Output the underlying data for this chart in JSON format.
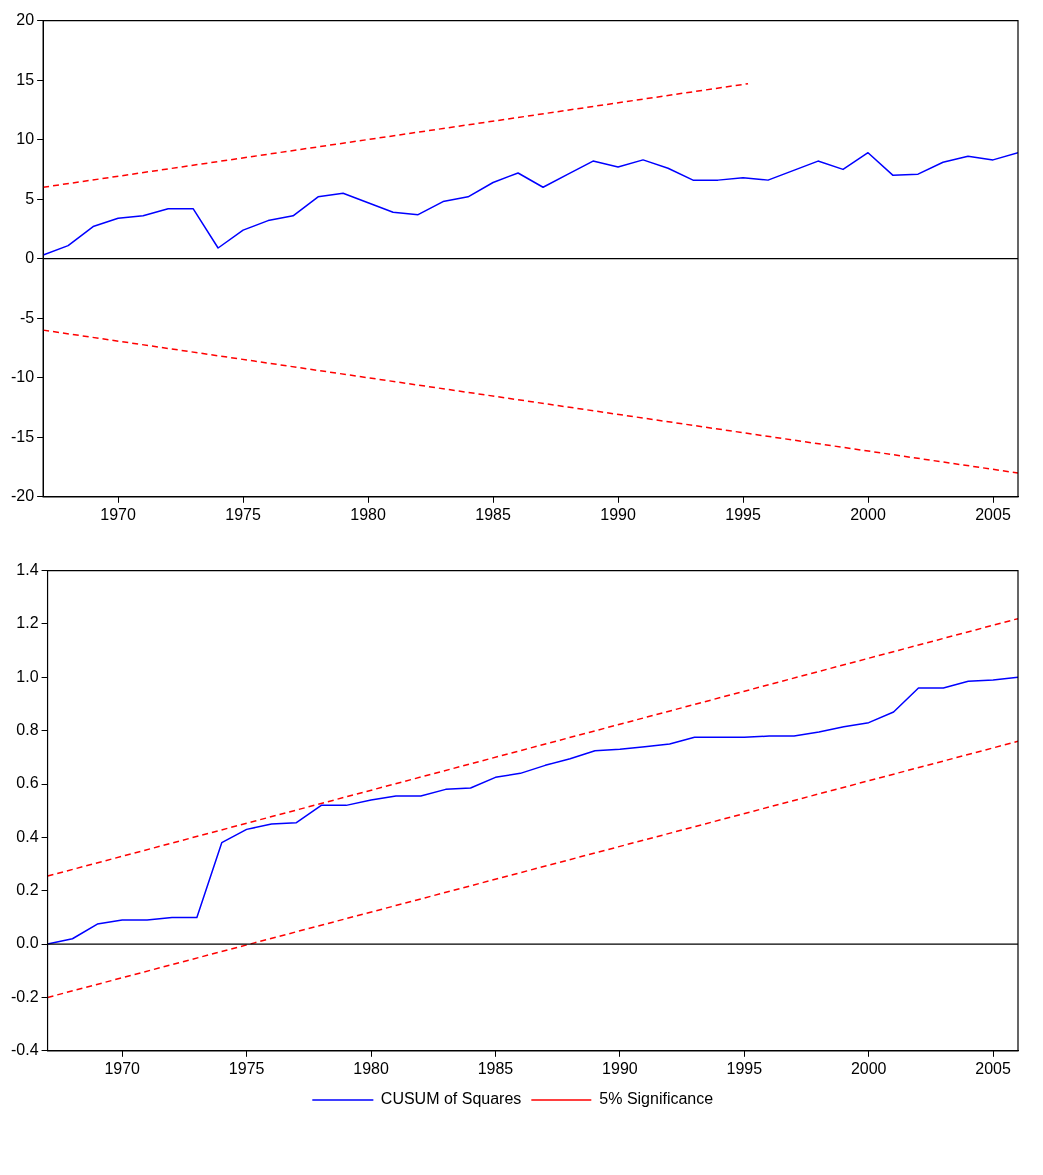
{
  "chart_data": [
    {
      "type": "line",
      "x": [
        1967,
        1968,
        1969,
        1970,
        1971,
        1972,
        1973,
        1974,
        1975,
        1976,
        1977,
        1978,
        1979,
        1980,
        1981,
        1982,
        1983,
        1984,
        1985,
        1986,
        1987,
        1988,
        1989,
        1990,
        1991,
        1992,
        1993,
        1994,
        1995,
        1996,
        1997,
        1998,
        1999,
        2000,
        2001,
        2002,
        2003,
        2004,
        2005,
        2006
      ],
      "series": [
        {
          "color": "#0000ff",
          "line_style": "solid",
          "values": [
            0.3,
            1.1,
            2.7,
            3.4,
            3.6,
            4.2,
            4.2,
            0.9,
            2.4,
            3.2,
            3.6,
            5.2,
            5.5,
            4.7,
            3.9,
            3.7,
            4.8,
            5.2,
            6.4,
            7.2,
            6.0,
            7.1,
            8.2,
            7.7,
            8.3,
            7.6,
            6.6,
            6.6,
            6.8,
            6.6,
            7.4,
            8.2,
            7.5,
            8.9,
            7.0,
            7.1,
            8.1,
            8.6,
            8.3,
            8.9
          ]
        },
        {
          "color": "#ff0000",
          "line_style": "dashed",
          "x": [
            1967,
            1995.2
          ],
          "values": [
            6.0,
            14.7
          ]
        },
        {
          "color": "#ff0000",
          "line_style": "dashed",
          "x": [
            1967,
            2006
          ],
          "values": [
            -6.0,
            -18.0
          ]
        }
      ],
      "xlim": [
        1967,
        2006
      ],
      "xticks": [
        1970,
        1975,
        1980,
        1985,
        1990,
        1995,
        2000,
        2005
      ],
      "ylim": [
        -20,
        20
      ],
      "yticks": [
        -20,
        -15,
        -10,
        -5,
        0,
        5,
        10,
        15,
        20
      ],
      "ref_lines": [
        {
          "axis": "y",
          "value": 0,
          "color": "#000000"
        }
      ],
      "grid": false,
      "legend": false,
      "marker": "none"
    },
    {
      "type": "line",
      "x": [
        1967,
        1968,
        1969,
        1970,
        1971,
        1972,
        1973,
        1974,
        1975,
        1976,
        1977,
        1978,
        1979,
        1980,
        1981,
        1982,
        1983,
        1984,
        1985,
        1986,
        1987,
        1988,
        1989,
        1990,
        1991,
        1992,
        1993,
        1994,
        1995,
        1996,
        1997,
        1998,
        1999,
        2000,
        2001,
        2002,
        2003,
        2004,
        2005,
        2006
      ],
      "series": [
        {
          "name": "CUSUM of Squares",
          "color": "#0000ff",
          "line_style": "solid",
          "values": [
            0.0,
            0.02,
            0.075,
            0.09,
            0.09,
            0.1,
            0.1,
            0.38,
            0.43,
            0.45,
            0.455,
            0.52,
            0.52,
            0.54,
            0.555,
            0.555,
            0.58,
            0.585,
            0.625,
            0.64,
            0.67,
            0.695,
            0.725,
            0.73,
            0.74,
            0.75,
            0.775,
            0.775,
            0.775,
            0.78,
            0.78,
            0.795,
            0.815,
            0.83,
            0.87,
            0.96,
            0.96,
            0.985,
            0.99,
            1.0
          ]
        },
        {
          "name": "5% Significance",
          "color": "#ff0000",
          "line_style": "dashed",
          "x": [
            1967,
            2006
          ],
          "values": [
            0.255,
            1.22
          ]
        },
        {
          "color": "#ff0000",
          "line_style": "dashed",
          "x": [
            1967,
            2006
          ],
          "values": [
            -0.2,
            0.76
          ]
        }
      ],
      "xlim": [
        1967,
        2006
      ],
      "xticks": [
        1970,
        1975,
        1980,
        1985,
        1990,
        1995,
        2000,
        2005
      ],
      "ylim": [
        -0.4,
        1.4
      ],
      "yticks": [
        -0.4,
        -0.2,
        {
          "value": 0,
          "label": "0.0"
        },
        0.2,
        0.4,
        0.6,
        0.8,
        {
          "value": 1,
          "label": "1.0"
        },
        1.2,
        1.4
      ],
      "ref_lines": [
        {
          "axis": "y",
          "value": 0,
          "color": "#000000"
        }
      ],
      "grid": false,
      "legend": "bottom",
      "marker": "none"
    }
  ]
}
